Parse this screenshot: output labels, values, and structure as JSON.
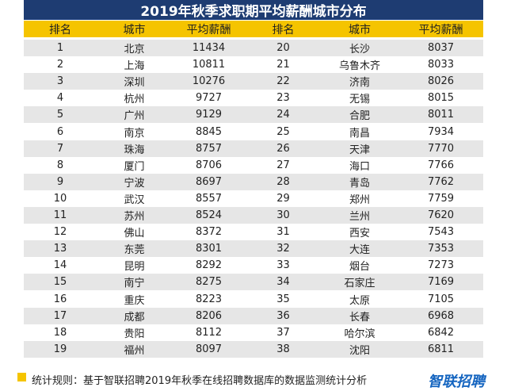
{
  "header": {
    "title": "2019年秋季求职期平均薪酬城市分布"
  },
  "table": {
    "columns": [
      "排名",
      "城市",
      "平均薪酬",
      "排名",
      "城市",
      "平均薪酬"
    ],
    "rows": [
      [
        1,
        "北京",
        11434,
        20,
        "长沙",
        8037
      ],
      [
        2,
        "上海",
        10811,
        21,
        "乌鲁木齐",
        8033
      ],
      [
        3,
        "深圳",
        10276,
        22,
        "济南",
        8026
      ],
      [
        4,
        "杭州",
        9727,
        23,
        "无锡",
        8015
      ],
      [
        5,
        "广州",
        9129,
        24,
        "合肥",
        8011
      ],
      [
        6,
        "南京",
        8845,
        25,
        "南昌",
        7934
      ],
      [
        7,
        "珠海",
        8757,
        26,
        "天津",
        7770
      ],
      [
        8,
        "厦门",
        8706,
        27,
        "海口",
        7766
      ],
      [
        9,
        "宁波",
        8697,
        28,
        "青岛",
        7762
      ],
      [
        10,
        "武汉",
        8557,
        29,
        "郑州",
        7759
      ],
      [
        11,
        "苏州",
        8524,
        30,
        "兰州",
        7620
      ],
      [
        12,
        "佛山",
        8372,
        31,
        "西安",
        7543
      ],
      [
        13,
        "东莞",
        8301,
        32,
        "大连",
        7353
      ],
      [
        14,
        "昆明",
        8292,
        33,
        "烟台",
        7273
      ],
      [
        15,
        "南宁",
        8275,
        34,
        "石家庄",
        7169
      ],
      [
        16,
        "重庆",
        8223,
        35,
        "太原",
        7105
      ],
      [
        17,
        "成都",
        8206,
        36,
        "长春",
        6968
      ],
      [
        18,
        "贵阳",
        8112,
        37,
        "哈尔滨",
        6842
      ],
      [
        19,
        "福州",
        8097,
        38,
        "沈阳",
        6811
      ]
    ]
  },
  "footer": {
    "note": "统计规则：基于智联招聘2019年秋季在线招聘数据库的数据监测统计分析",
    "logo": "智联招聘"
  }
}
